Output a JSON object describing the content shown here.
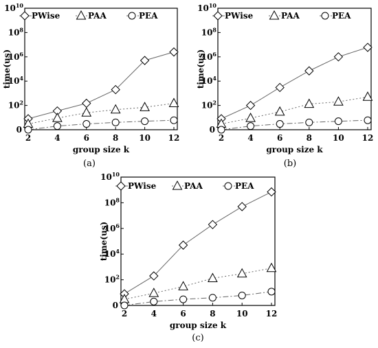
{
  "chart_data": [
    {
      "type": "line",
      "panel_label": "(a)",
      "xlabel": "group size k",
      "ylabel": "time(us)",
      "x": [
        2,
        4,
        6,
        8,
        10,
        12
      ],
      "x_ticks": [
        "2",
        "4",
        "6",
        "8",
        "10",
        "12"
      ],
      "y_scale": "log",
      "y_ticks": [
        {
          "label": "0",
          "sup": "",
          "value": 1
        },
        {
          "label": "10",
          "sup": "2",
          "value": 100
        },
        {
          "label": "10",
          "sup": "4",
          "value": 10000
        },
        {
          "label": "10",
          "sup": "6",
          "value": 1000000
        },
        {
          "label": "10",
          "sup": "8",
          "value": 100000000
        },
        {
          "label": "10",
          "sup": "10",
          "value": 10000000000
        }
      ],
      "ylim": [
        1,
        10000000000
      ],
      "legend_position": "top",
      "series": [
        {
          "name": "PWise",
          "marker": "diamond",
          "dash": "solid",
          "values": [
            8,
            35,
            150,
            2000,
            500000,
            2500000
          ]
        },
        {
          "name": "PAA",
          "marker": "triangle",
          "dash": "dotted",
          "values": [
            3,
            9,
            25,
            45,
            70,
            150
          ]
        },
        {
          "name": "PEA",
          "marker": "circle",
          "dash": "dashdot",
          "values": [
            1,
            2,
            3,
            4,
            5,
            6
          ]
        }
      ]
    },
    {
      "type": "line",
      "panel_label": "(b)",
      "xlabel": "group size k",
      "ylabel": "time(us)",
      "x": [
        2,
        4,
        6,
        8,
        10,
        12
      ],
      "x_ticks": [
        "2",
        "4",
        "6",
        "8",
        "10",
        "12"
      ],
      "y_scale": "log",
      "y_ticks": [
        {
          "label": "0",
          "sup": "",
          "value": 1
        },
        {
          "label": "10",
          "sup": "2",
          "value": 100
        },
        {
          "label": "10",
          "sup": "4",
          "value": 10000
        },
        {
          "label": "10",
          "sup": "6",
          "value": 1000000
        },
        {
          "label": "10",
          "sup": "8",
          "value": 100000000
        },
        {
          "label": "10",
          "sup": "10",
          "value": 10000000000
        }
      ],
      "ylim": [
        1,
        10000000000
      ],
      "legend_position": "top",
      "series": [
        {
          "name": "PWise",
          "marker": "diamond",
          "dash": "solid",
          "values": [
            8,
            100,
            3000,
            70000,
            1000000,
            6000000
          ]
        },
        {
          "name": "PAA",
          "marker": "triangle",
          "dash": "dotted",
          "values": [
            3,
            9,
            30,
            130,
            200,
            500
          ]
        },
        {
          "name": "PEA",
          "marker": "circle",
          "dash": "dashdot",
          "values": [
            1,
            2,
            3,
            4,
            5,
            6
          ]
        }
      ]
    },
    {
      "type": "line",
      "panel_label": "(c)",
      "xlabel": "group size k",
      "ylabel": "time(us)",
      "x": [
        2,
        4,
        6,
        8,
        10,
        12
      ],
      "x_ticks": [
        "2",
        "4",
        "6",
        "8",
        "10",
        "12"
      ],
      "y_scale": "log",
      "y_ticks": [
        {
          "label": "0",
          "sup": "",
          "value": 1
        },
        {
          "label": "10",
          "sup": "2",
          "value": 100
        },
        {
          "label": "10",
          "sup": "4",
          "value": 10000
        },
        {
          "label": "10",
          "sup": "6",
          "value": 1000000
        },
        {
          "label": "10",
          "sup": "8",
          "value": 100000000
        },
        {
          "label": "10",
          "sup": "10",
          "value": 10000000000
        }
      ],
      "ylim": [
        1,
        10000000000
      ],
      "legend_position": "top",
      "series": [
        {
          "name": "PWise",
          "marker": "diamond",
          "dash": "solid",
          "values": [
            8,
            200,
            50000,
            2000000,
            50000000,
            700000000
          ]
        },
        {
          "name": "PAA",
          "marker": "triangle",
          "dash": "dotted",
          "values": [
            3,
            9,
            30,
            130,
            300,
            800
          ]
        },
        {
          "name": "PEA",
          "marker": "circle",
          "dash": "dashdot",
          "values": [
            1,
            2,
            3,
            4,
            6,
            12
          ]
        }
      ]
    }
  ]
}
